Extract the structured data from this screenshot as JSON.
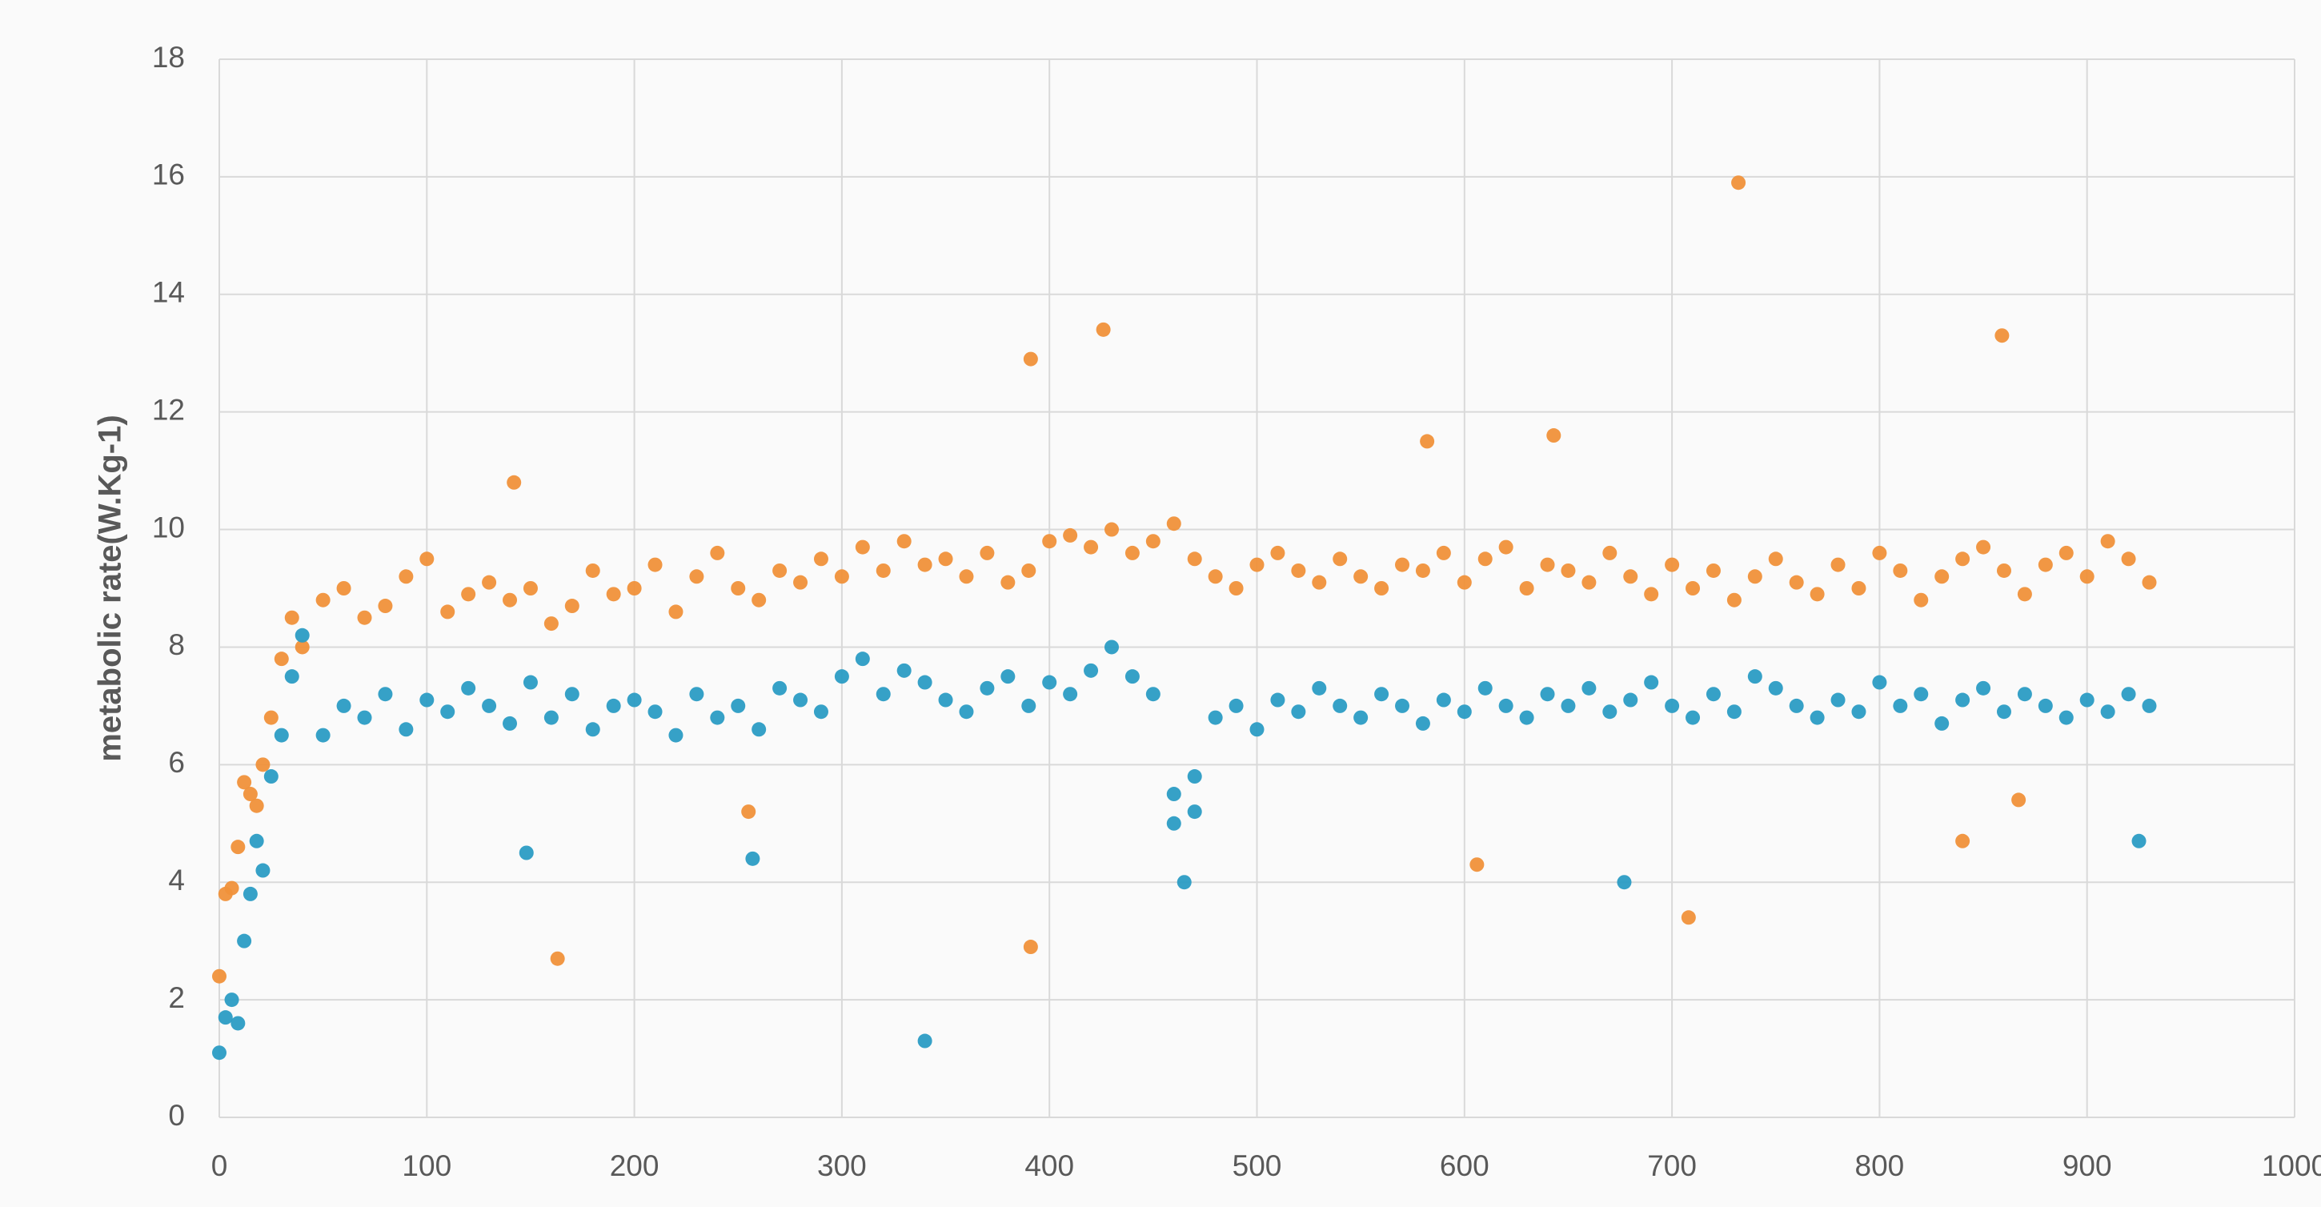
{
  "chart_data": {
    "type": "scatter",
    "ylabel": "metabolic rate(W.Kg-1)",
    "xlim": [
      0,
      1000
    ],
    "xticks": [
      0,
      100,
      200,
      300,
      400,
      500,
      600,
      700,
      800,
      900,
      1000
    ],
    "ylim": [
      0,
      18
    ],
    "yticks": [
      0,
      2,
      4,
      6,
      8,
      10,
      12,
      14,
      16,
      18
    ],
    "grid": true,
    "series": [
      {
        "color": "#F0913A",
        "x": [
          0,
          3,
          6,
          9,
          12,
          15,
          18,
          21,
          25,
          30,
          35,
          40,
          50,
          60,
          70,
          80,
          90,
          100,
          110,
          120,
          130,
          140,
          150,
          160,
          170,
          180,
          190,
          200,
          210,
          220,
          230,
          240,
          250,
          260,
          270,
          280,
          290,
          300,
          310,
          320,
          330,
          340,
          350,
          360,
          370,
          380,
          390,
          400,
          410,
          420,
          430,
          440,
          450,
          460,
          470,
          480,
          490,
          500,
          510,
          520,
          530,
          540,
          550,
          560,
          570,
          580,
          590,
          600,
          610,
          620,
          630,
          640,
          650,
          660,
          670,
          680,
          690,
          700,
          710,
          720,
          730,
          740,
          750,
          760,
          770,
          780,
          790,
          800,
          810,
          820,
          830,
          840,
          850,
          860,
          870,
          880,
          890,
          900,
          910,
          920,
          930,
          391,
          426,
          732,
          859,
          163,
          391,
          708,
          606,
          840,
          255,
          867,
          142,
          643,
          582
        ],
        "values": [
          2.4,
          3.8,
          3.9,
          4.6,
          5.7,
          5.5,
          5.3,
          6.0,
          6.8,
          7.8,
          8.5,
          8.0,
          8.8,
          9.0,
          8.5,
          8.7,
          9.2,
          9.5,
          8.6,
          8.9,
          9.1,
          8.8,
          9.0,
          8.4,
          8.7,
          9.3,
          8.9,
          9.0,
          9.4,
          8.6,
          9.2,
          9.6,
          9.0,
          8.8,
          9.3,
          9.1,
          9.5,
          9.2,
          9.7,
          9.3,
          9.8,
          9.4,
          9.5,
          9.2,
          9.6,
          9.1,
          9.3,
          9.8,
          9.9,
          9.7,
          10.0,
          9.6,
          9.8,
          10.1,
          9.5,
          9.2,
          9.0,
          9.4,
          9.6,
          9.3,
          9.1,
          9.5,
          9.2,
          9.0,
          9.4,
          9.3,
          9.6,
          9.1,
          9.5,
          9.7,
          9.0,
          9.4,
          9.3,
          9.1,
          9.6,
          9.2,
          8.9,
          9.4,
          9.0,
          9.3,
          8.8,
          9.2,
          9.5,
          9.1,
          8.9,
          9.4,
          9.0,
          9.6,
          9.3,
          8.8,
          9.2,
          9.5,
          9.7,
          9.3,
          8.9,
          9.4,
          9.6,
          9.2,
          9.8,
          9.5,
          9.1,
          12.9,
          13.4,
          15.9,
          13.3,
          2.7,
          2.9,
          3.4,
          4.3,
          4.7,
          5.2,
          5.4,
          10.8,
          11.6,
          11.5
        ]
      },
      {
        "color": "#2B9CC4",
        "x": [
          0,
          3,
          6,
          9,
          12,
          15,
          18,
          21,
          25,
          30,
          35,
          40,
          50,
          60,
          70,
          80,
          90,
          100,
          110,
          120,
          130,
          140,
          150,
          160,
          170,
          180,
          190,
          200,
          210,
          220,
          230,
          240,
          250,
          260,
          270,
          280,
          290,
          300,
          310,
          320,
          330,
          340,
          350,
          360,
          370,
          380,
          390,
          400,
          410,
          420,
          430,
          440,
          450,
          460,
          470,
          480,
          490,
          500,
          510,
          520,
          530,
          540,
          550,
          560,
          570,
          580,
          590,
          600,
          610,
          620,
          630,
          640,
          650,
          660,
          670,
          680,
          690,
          700,
          710,
          720,
          730,
          740,
          750,
          760,
          770,
          780,
          790,
          800,
          810,
          820,
          830,
          840,
          850,
          860,
          870,
          880,
          890,
          900,
          910,
          920,
          930,
          340,
          465,
          677,
          257,
          148,
          925,
          470,
          460
        ],
        "values": [
          1.1,
          1.7,
          2.0,
          1.6,
          3.0,
          3.8,
          4.7,
          4.2,
          5.8,
          6.5,
          7.5,
          8.2,
          6.5,
          7.0,
          6.8,
          7.2,
          6.6,
          7.1,
          6.9,
          7.3,
          7.0,
          6.7,
          7.4,
          6.8,
          7.2,
          6.6,
          7.0,
          7.1,
          6.9,
          6.5,
          7.2,
          6.8,
          7.0,
          6.6,
          7.3,
          7.1,
          6.9,
          7.5,
          7.8,
          7.2,
          7.6,
          7.4,
          7.1,
          6.9,
          7.3,
          7.5,
          7.0,
          7.4,
          7.2,
          7.6,
          8.0,
          7.5,
          7.2,
          5.5,
          5.8,
          6.8,
          7.0,
          6.6,
          7.1,
          6.9,
          7.3,
          7.0,
          6.8,
          7.2,
          7.0,
          6.7,
          7.1,
          6.9,
          7.3,
          7.0,
          6.8,
          7.2,
          7.0,
          7.3,
          6.9,
          7.1,
          7.4,
          7.0,
          6.8,
          7.2,
          6.9,
          7.5,
          7.3,
          7.0,
          6.8,
          7.1,
          6.9,
          7.4,
          7.0,
          7.2,
          6.7,
          7.1,
          7.3,
          6.9,
          7.2,
          7.0,
          6.8,
          7.1,
          6.9,
          7.2,
          7.0,
          1.3,
          4.0,
          4.0,
          4.4,
          4.5,
          4.7,
          5.2,
          5.0
        ]
      }
    ]
  }
}
